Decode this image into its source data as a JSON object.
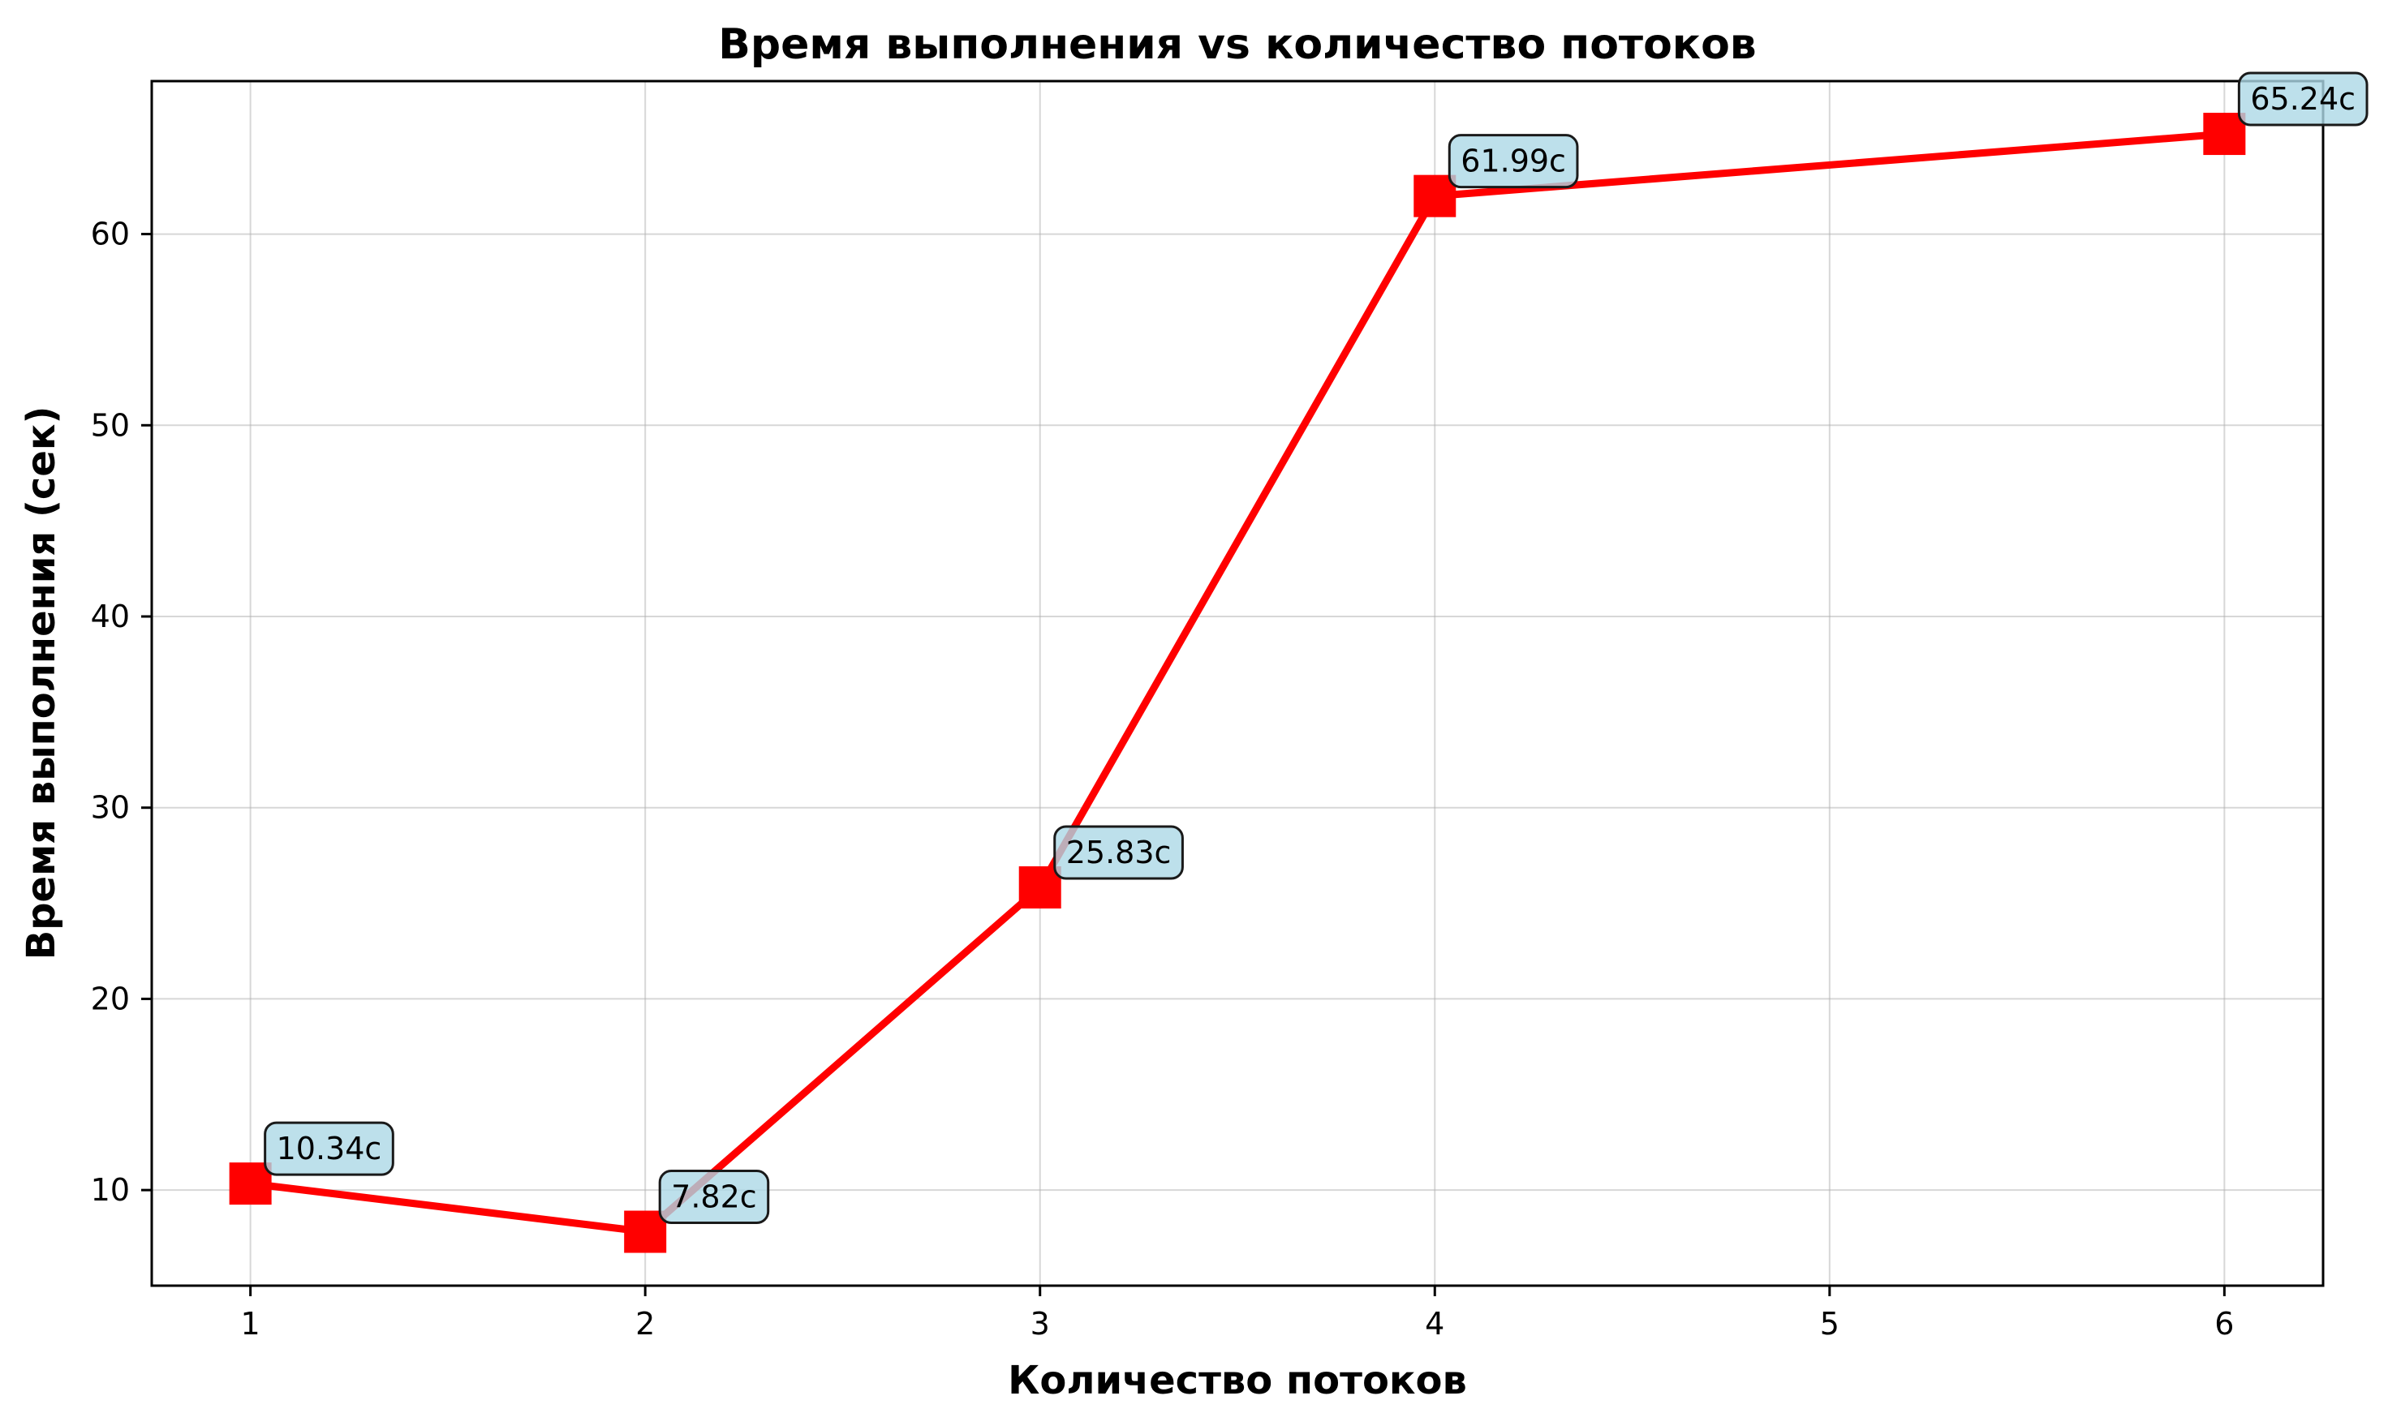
{
  "chart_data": {
    "type": "line",
    "title": "Время выполнения vs количество потоков",
    "xlabel": "Количество потоков",
    "ylabel": "Время выполнения (сек)",
    "xlim": [
      0.75,
      6.25
    ],
    "ylim": [
      5,
      68
    ],
    "xticks": [
      1,
      2,
      3,
      4,
      5,
      6
    ],
    "yticks": [
      10,
      20,
      30,
      40,
      50,
      60
    ],
    "grid": true,
    "marker": "square",
    "color": "#ff0000",
    "annotation_color": "#add8e6",
    "series": [
      {
        "x": [
          1,
          2,
          3,
          4,
          6
        ],
        "y": [
          10.34,
          7.82,
          25.83,
          61.99,
          65.24
        ],
        "labels": [
          "10.34c",
          "7.82c",
          "25.83c",
          "61.99c",
          "65.24c"
        ]
      }
    ]
  }
}
